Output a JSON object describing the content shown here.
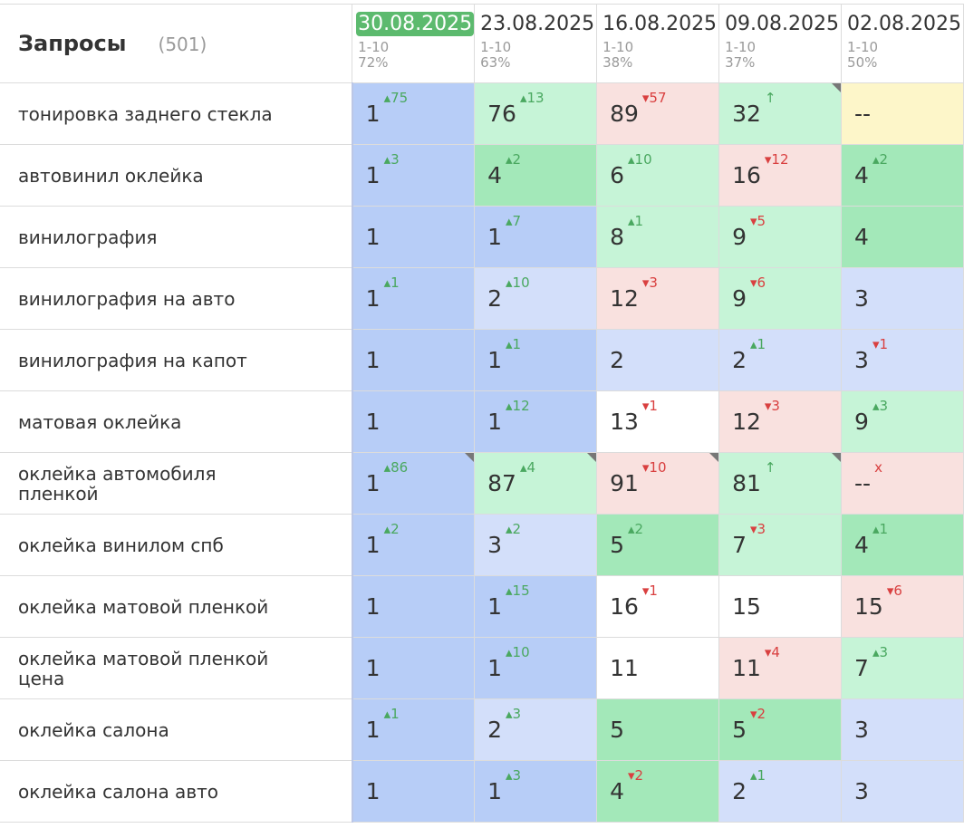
{
  "header": {
    "title": "Запросы",
    "count": "(501)",
    "dates": [
      {
        "date": "30.08.2025",
        "range": "1-10",
        "pct": "72%",
        "active": true
      },
      {
        "date": "23.08.2025",
        "range": "1-10",
        "pct": "63%"
      },
      {
        "date": "16.08.2025",
        "range": "1-10",
        "pct": "38%"
      },
      {
        "date": "09.08.2025",
        "range": "1-10",
        "pct": "37%"
      },
      {
        "date": "02.08.2025",
        "range": "1-10",
        "pct": "50%"
      }
    ]
  },
  "rows": [
    {
      "keyword": "тонировка заднего стекла",
      "cells": [
        {
          "v": "1",
          "c": "▴75",
          "d": "up",
          "bg": "blue"
        },
        {
          "v": "76",
          "c": "▴13",
          "d": "up",
          "bg": "lgreen"
        },
        {
          "v": "89",
          "c": "▾57",
          "d": "down",
          "bg": "pink"
        },
        {
          "v": "32",
          "c": "↑",
          "d": "up",
          "bg": "lgreen",
          "flag": true
        },
        {
          "v": "--",
          "c": "",
          "d": "",
          "bg": "yellow"
        }
      ]
    },
    {
      "keyword": "автовинил оклейка",
      "cells": [
        {
          "v": "1",
          "c": "▴3",
          "d": "up",
          "bg": "blue"
        },
        {
          "v": "4",
          "c": "▴2",
          "d": "up",
          "bg": "green"
        },
        {
          "v": "6",
          "c": "▴10",
          "d": "up",
          "bg": "lgreen"
        },
        {
          "v": "16",
          "c": "▾12",
          "d": "down",
          "bg": "pink"
        },
        {
          "v": "4",
          "c": "▴2",
          "d": "up",
          "bg": "green"
        }
      ]
    },
    {
      "keyword": "винилография",
      "cells": [
        {
          "v": "1",
          "c": "",
          "d": "",
          "bg": "blue"
        },
        {
          "v": "1",
          "c": "▴7",
          "d": "up",
          "bg": "blue"
        },
        {
          "v": "8",
          "c": "▴1",
          "d": "up",
          "bg": "lgreen"
        },
        {
          "v": "9",
          "c": "▾5",
          "d": "down",
          "bg": "lgreen"
        },
        {
          "v": "4",
          "c": "",
          "d": "",
          "bg": "green"
        }
      ]
    },
    {
      "keyword": "винилография на авто",
      "cells": [
        {
          "v": "1",
          "c": "▴1",
          "d": "up",
          "bg": "blue"
        },
        {
          "v": "2",
          "c": "▴10",
          "d": "up",
          "bg": "lblue"
        },
        {
          "v": "12",
          "c": "▾3",
          "d": "down",
          "bg": "pink"
        },
        {
          "v": "9",
          "c": "▾6",
          "d": "down",
          "bg": "lgreen"
        },
        {
          "v": "3",
          "c": "",
          "d": "",
          "bg": "lblue"
        }
      ]
    },
    {
      "keyword": "винилография на капот",
      "cells": [
        {
          "v": "1",
          "c": "",
          "d": "",
          "bg": "blue"
        },
        {
          "v": "1",
          "c": "▴1",
          "d": "up",
          "bg": "blue"
        },
        {
          "v": "2",
          "c": "",
          "d": "",
          "bg": "lblue"
        },
        {
          "v": "2",
          "c": "▴1",
          "d": "up",
          "bg": "lblue"
        },
        {
          "v": "3",
          "c": "▾1",
          "d": "down",
          "bg": "lblue"
        }
      ]
    },
    {
      "keyword": "матовая оклейка",
      "cells": [
        {
          "v": "1",
          "c": "",
          "d": "",
          "bg": "blue"
        },
        {
          "v": "1",
          "c": "▴12",
          "d": "up",
          "bg": "blue"
        },
        {
          "v": "13",
          "c": "▾1",
          "d": "down",
          "bg": "white"
        },
        {
          "v": "12",
          "c": "▾3",
          "d": "down",
          "bg": "pink"
        },
        {
          "v": "9",
          "c": "▴3",
          "d": "up",
          "bg": "lgreen"
        }
      ]
    },
    {
      "keyword": "оклейка автомобиля пленкой",
      "cells": [
        {
          "v": "1",
          "c": "▴86",
          "d": "up",
          "bg": "blue",
          "flag": true
        },
        {
          "v": "87",
          "c": "▴4",
          "d": "up",
          "bg": "lgreen",
          "flag": true
        },
        {
          "v": "91",
          "c": "▾10",
          "d": "down",
          "bg": "pink",
          "flag": true
        },
        {
          "v": "81",
          "c": "↑",
          "d": "up",
          "bg": "lgreen",
          "flag": true
        },
        {
          "v": "--",
          "c": "x",
          "d": "down",
          "bg": "pink"
        }
      ]
    },
    {
      "keyword": "оклейка винилом спб",
      "cells": [
        {
          "v": "1",
          "c": "▴2",
          "d": "up",
          "bg": "blue"
        },
        {
          "v": "3",
          "c": "▴2",
          "d": "up",
          "bg": "lblue"
        },
        {
          "v": "5",
          "c": "▴2",
          "d": "up",
          "bg": "green"
        },
        {
          "v": "7",
          "c": "▾3",
          "d": "down",
          "bg": "lgreen"
        },
        {
          "v": "4",
          "c": "▴1",
          "d": "up",
          "bg": "green"
        }
      ]
    },
    {
      "keyword": "оклейка матовой пленкой",
      "cells": [
        {
          "v": "1",
          "c": "",
          "d": "",
          "bg": "blue"
        },
        {
          "v": "1",
          "c": "▴15",
          "d": "up",
          "bg": "blue"
        },
        {
          "v": "16",
          "c": "▾1",
          "d": "down",
          "bg": "white"
        },
        {
          "v": "15",
          "c": "",
          "d": "",
          "bg": "white"
        },
        {
          "v": "15",
          "c": "▾6",
          "d": "down",
          "bg": "pink"
        }
      ]
    },
    {
      "keyword": "оклейка матовой пленкой цена",
      "cells": [
        {
          "v": "1",
          "c": "",
          "d": "",
          "bg": "blue"
        },
        {
          "v": "1",
          "c": "▴10",
          "d": "up",
          "bg": "blue"
        },
        {
          "v": "11",
          "c": "",
          "d": "",
          "bg": "white"
        },
        {
          "v": "11",
          "c": "▾4",
          "d": "down",
          "bg": "pink"
        },
        {
          "v": "7",
          "c": "▴3",
          "d": "up",
          "bg": "lgreen"
        }
      ]
    },
    {
      "keyword": "оклейка салона",
      "cells": [
        {
          "v": "1",
          "c": "▴1",
          "d": "up",
          "bg": "blue"
        },
        {
          "v": "2",
          "c": "▴3",
          "d": "up",
          "bg": "lblue"
        },
        {
          "v": "5",
          "c": "",
          "d": "",
          "bg": "green"
        },
        {
          "v": "5",
          "c": "▾2",
          "d": "down",
          "bg": "green"
        },
        {
          "v": "3",
          "c": "",
          "d": "",
          "bg": "lblue"
        }
      ]
    },
    {
      "keyword": "оклейка салона авто",
      "cells": [
        {
          "v": "1",
          "c": "",
          "d": "",
          "bg": "blue"
        },
        {
          "v": "1",
          "c": "▴3",
          "d": "up",
          "bg": "blue"
        },
        {
          "v": "4",
          "c": "▾2",
          "d": "down",
          "bg": "green"
        },
        {
          "v": "2",
          "c": "▴1",
          "d": "up",
          "bg": "lblue"
        },
        {
          "v": "3",
          "c": "",
          "d": "",
          "bg": "lblue"
        }
      ]
    }
  ]
}
